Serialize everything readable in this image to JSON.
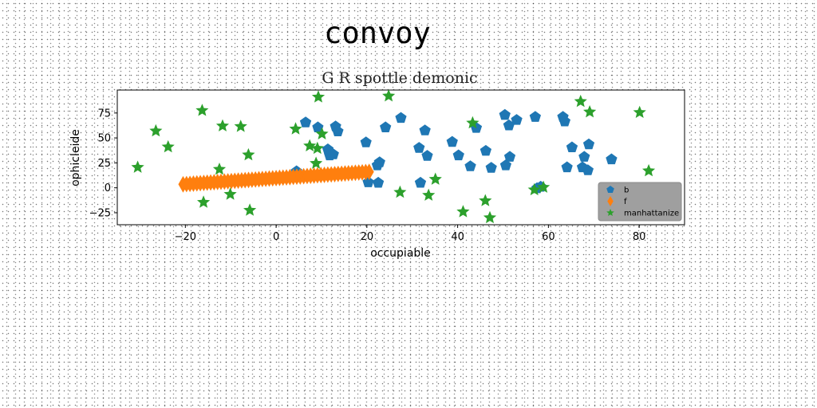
{
  "figure": {
    "title": "convoy"
  },
  "chart_data": {
    "type": "scatter",
    "title": "G R spottle demonic",
    "xlabel": "occupiable",
    "ylabel": "ophicleide",
    "xlim": [
      -35,
      90
    ],
    "ylim": [
      -37,
      98
    ],
    "xticks": [
      -20,
      0,
      20,
      40,
      60,
      80
    ],
    "yticks": [
      -25,
      0,
      25,
      50,
      75
    ],
    "grid": false,
    "legend_position": "lower-right",
    "series": [
      {
        "name": "b",
        "marker": "pentagon",
        "color": "#1f77b4",
        "x": [
          4.5,
          6.5,
          9.2,
          11.4,
          11.8,
          13.1,
          13.6,
          12.6,
          19.8,
          20.3,
          22.3,
          22.8,
          22.5,
          24.1,
          27.5,
          31.5,
          31.8,
          32.8,
          33.3,
          38.8,
          40.2,
          42.8,
          44.1,
          46.2,
          47.4,
          50.4,
          50.6,
          51.3,
          51.5,
          53.0,
          57.1,
          57.5,
          58.3,
          63.2,
          63.6,
          64.1,
          65.2,
          67.5,
          67.9,
          68.7,
          68.9,
          73.9
        ],
        "y": [
          16.5,
          65.5,
          60.5,
          38.5,
          32.5,
          61.5,
          56.5,
          33.5,
          45.5,
          5.5,
          22.5,
          25.5,
          5.0,
          60.5,
          70.0,
          40.0,
          5.0,
          57.5,
          32.0,
          46.0,
          32.5,
          21.5,
          60.0,
          37.0,
          20.0,
          73.0,
          22.5,
          62.5,
          31.0,
          68.0,
          71.0,
          -0.5,
          1.0,
          71.0,
          66.5,
          20.5,
          40.5,
          20.5,
          31.0,
          17.5,
          43.5,
          28.5
        ]
      },
      {
        "name": "f",
        "marker": "diamond",
        "color": "#ff7f0e",
        "x_range": [
          -20.5,
          20.5
        ],
        "y_range": [
          3.5,
          16.0
        ],
        "count": 55
      },
      {
        "name": "manhattanize",
        "marker": "star",
        "color": "#2ca02c",
        "x": [
          -30.5,
          -26.5,
          -23.8,
          -16.3,
          -16.0,
          -12.5,
          -11.8,
          -10.1,
          -7.8,
          -6.1,
          -5.8,
          4.3,
          7.4,
          8.8,
          9.1,
          9.3,
          10.1,
          24.8,
          27.3,
          33.6,
          35.1,
          41.2,
          43.3,
          46.1,
          47.1,
          56.9,
          58.9,
          67.1,
          69.1,
          80.1,
          82.1
        ],
        "y": [
          20.5,
          57.0,
          41.0,
          77.5,
          -14.5,
          18.5,
          62.0,
          -6.5,
          61.5,
          33.0,
          -22.5,
          59.0,
          42.0,
          24.5,
          39.5,
          91.0,
          54.0,
          92.0,
          -4.5,
          -7.5,
          8.5,
          -24.0,
          65.0,
          -13.0,
          -30.0,
          -2.0,
          0.5,
          86.5,
          76.0,
          75.5,
          17.0
        ]
      }
    ]
  }
}
